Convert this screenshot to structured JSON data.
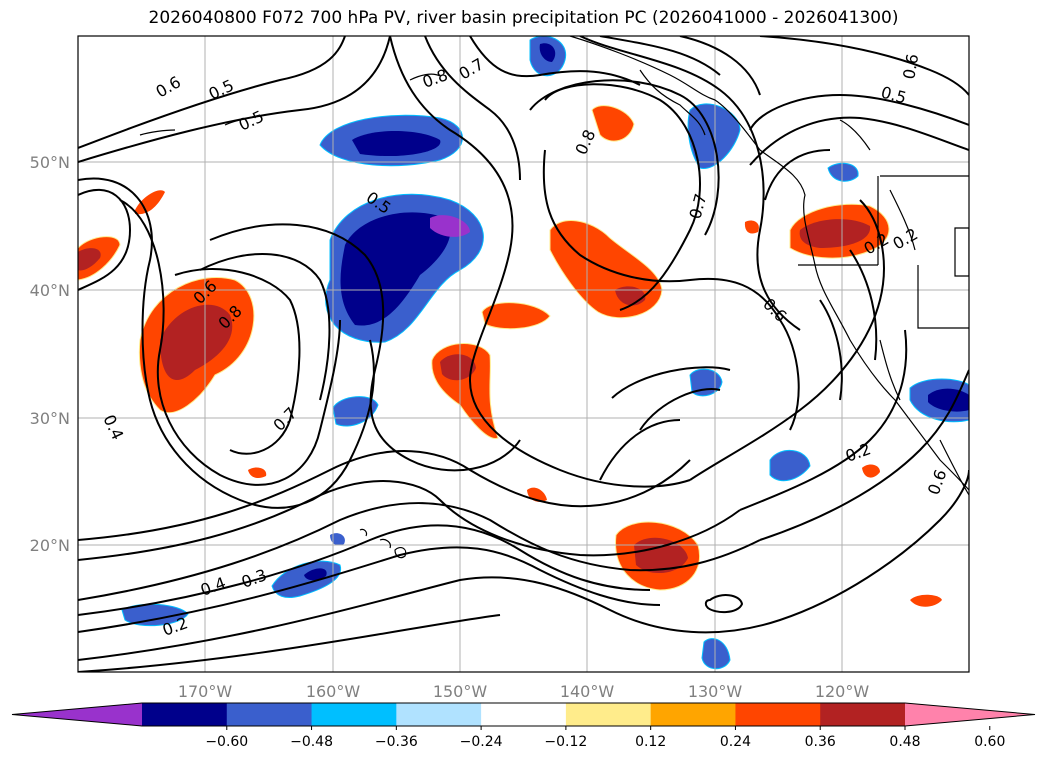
{
  "title": "2026040800 F072 700 hPa PV, river basin precipitation PC (2026041000 - 2026041300)",
  "map": {
    "lon_ticks": [
      "170°W",
      "160°W",
      "150°W",
      "140°W",
      "130°W",
      "120°W"
    ],
    "lat_ticks": [
      "50°N",
      "40°N",
      "30°N",
      "20°N"
    ],
    "grid": true,
    "contour_color": "#000000",
    "contour_labels": [
      "0.6",
      "0.5",
      "0.5",
      "0.8",
      "0.7",
      "0.8",
      "0.5",
      "0.6",
      "0.5",
      "0.7",
      "0.6",
      "0.8",
      "0.6",
      "0.7",
      "0.4",
      "0.4",
      "0.3",
      "0.2",
      "0.2",
      "0.2",
      "0.2",
      "0.6"
    ]
  },
  "colorbar": {
    "ticks": [
      "−0.60",
      "−0.48",
      "−0.36",
      "−0.24",
      "−0.12",
      "0.12",
      "0.24",
      "0.36",
      "0.48",
      "0.60"
    ],
    "colors": [
      "#9932cc",
      "#00008b",
      "#3a5fcd",
      "#00bfff",
      "#b0e2ff",
      "#ffffff",
      "#ffec8b",
      "#ffa500",
      "#ff4500",
      "#b22222",
      "#ff82ab"
    ]
  }
}
